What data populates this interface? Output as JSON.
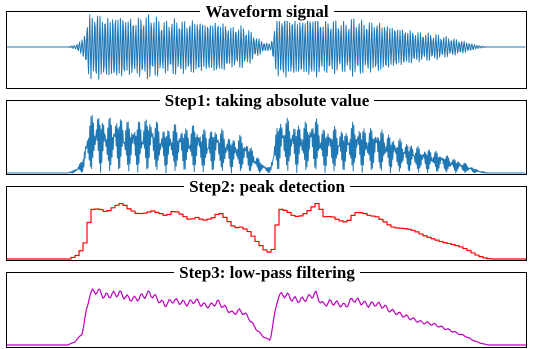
{
  "titles": {
    "waveform": "Waveform signal",
    "step1": "Step1: taking absolute value",
    "step2": "Step2: peak detection",
    "step3": "Step3: low-pass filtering"
  },
  "colors": {
    "waveform": "#1f77b4",
    "step1": "#1f77b4",
    "step2": "#ff0000",
    "step3": "#bf00bf",
    "frame": "#000000"
  },
  "chart_data": [
    {
      "type": "line",
      "series": [
        {
          "values": [
            0,
            0,
            0,
            0,
            0,
            0,
            0,
            0,
            0,
            0.05,
            0.2,
            0.9,
            0.95,
            0.85,
            0.88,
            0.9,
            0.82,
            0.8,
            0.85,
            0.9,
            0.8,
            0.7,
            0.78,
            0.75,
            0.72,
            0.78,
            0.7,
            0.68,
            0.75,
            0.65,
            0.55,
            0.6,
            0.5,
            0.3,
            0.15,
            0.08,
            0.85,
            0.88,
            0.8,
            0.78,
            0.82,
            0.9,
            0.7,
            0.75,
            0.72,
            0.68,
            0.8,
            0.75,
            0.7,
            0.72,
            0.68,
            0.6,
            0.55,
            0.5,
            0.45,
            0.4,
            0.38,
            0.35,
            0.3,
            0.25,
            0.2,
            0.15,
            0.08,
            0.03,
            0,
            0,
            0,
            0,
            0,
            0
          ]
        }
      ],
      "ylim": [
        -1,
        1
      ]
    },
    {
      "type": "line",
      "series": [
        {
          "values": [
            0,
            0,
            0,
            0,
            0,
            0,
            0,
            0,
            0,
            0.05,
            0.2,
            0.9,
            0.95,
            0.85,
            0.88,
            0.9,
            0.82,
            0.8,
            0.85,
            0.9,
            0.8,
            0.7,
            0.78,
            0.75,
            0.72,
            0.78,
            0.7,
            0.68,
            0.75,
            0.65,
            0.55,
            0.6,
            0.5,
            0.3,
            0.15,
            0.08,
            0.85,
            0.88,
            0.8,
            0.78,
            0.82,
            0.9,
            0.7,
            0.75,
            0.72,
            0.68,
            0.8,
            0.75,
            0.7,
            0.72,
            0.68,
            0.6,
            0.55,
            0.5,
            0.45,
            0.4,
            0.38,
            0.35,
            0.3,
            0.25,
            0.2,
            0.15,
            0.08,
            0.03,
            0,
            0,
            0,
            0,
            0,
            0
          ]
        }
      ],
      "ylim": [
        0,
        1
      ]
    },
    {
      "type": "line",
      "series": [
        {
          "values": [
            0,
            0,
            0,
            0,
            0,
            0,
            0,
            0,
            0,
            0.05,
            0.2,
            0.9,
            0.95,
            0.85,
            0.88,
            0.9,
            0.82,
            0.8,
            0.85,
            0.9,
            0.8,
            0.7,
            0.78,
            0.75,
            0.72,
            0.78,
            0.7,
            0.68,
            0.75,
            0.65,
            0.55,
            0.6,
            0.5,
            0.3,
            0.15,
            0.08,
            0.85,
            0.88,
            0.8,
            0.78,
            0.82,
            0.9,
            0.7,
            0.75,
            0.72,
            0.68,
            0.8,
            0.75,
            0.7,
            0.72,
            0.68,
            0.6,
            0.55,
            0.5,
            0.45,
            0.4,
            0.38,
            0.35,
            0.3,
            0.25,
            0.2,
            0.15,
            0.08,
            0.03,
            0,
            0,
            0,
            0,
            0,
            0
          ]
        }
      ],
      "ylim": [
        0,
        1
      ]
    },
    {
      "type": "line",
      "series": [
        {
          "values": [
            0,
            0,
            0,
            0,
            0,
            0,
            0,
            0,
            0,
            0.05,
            0.2,
            0.9,
            0.95,
            0.85,
            0.88,
            0.9,
            0.82,
            0.8,
            0.85,
            0.9,
            0.8,
            0.7,
            0.78,
            0.75,
            0.72,
            0.78,
            0.7,
            0.68,
            0.75,
            0.65,
            0.55,
            0.6,
            0.5,
            0.3,
            0.15,
            0.08,
            0.85,
            0.88,
            0.8,
            0.78,
            0.82,
            0.9,
            0.7,
            0.75,
            0.72,
            0.68,
            0.8,
            0.75,
            0.7,
            0.72,
            0.68,
            0.6,
            0.55,
            0.5,
            0.45,
            0.4,
            0.38,
            0.35,
            0.3,
            0.25,
            0.2,
            0.15,
            0.08,
            0.03,
            0,
            0,
            0,
            0,
            0,
            0
          ]
        }
      ],
      "ylim": [
        0,
        1
      ]
    }
  ]
}
